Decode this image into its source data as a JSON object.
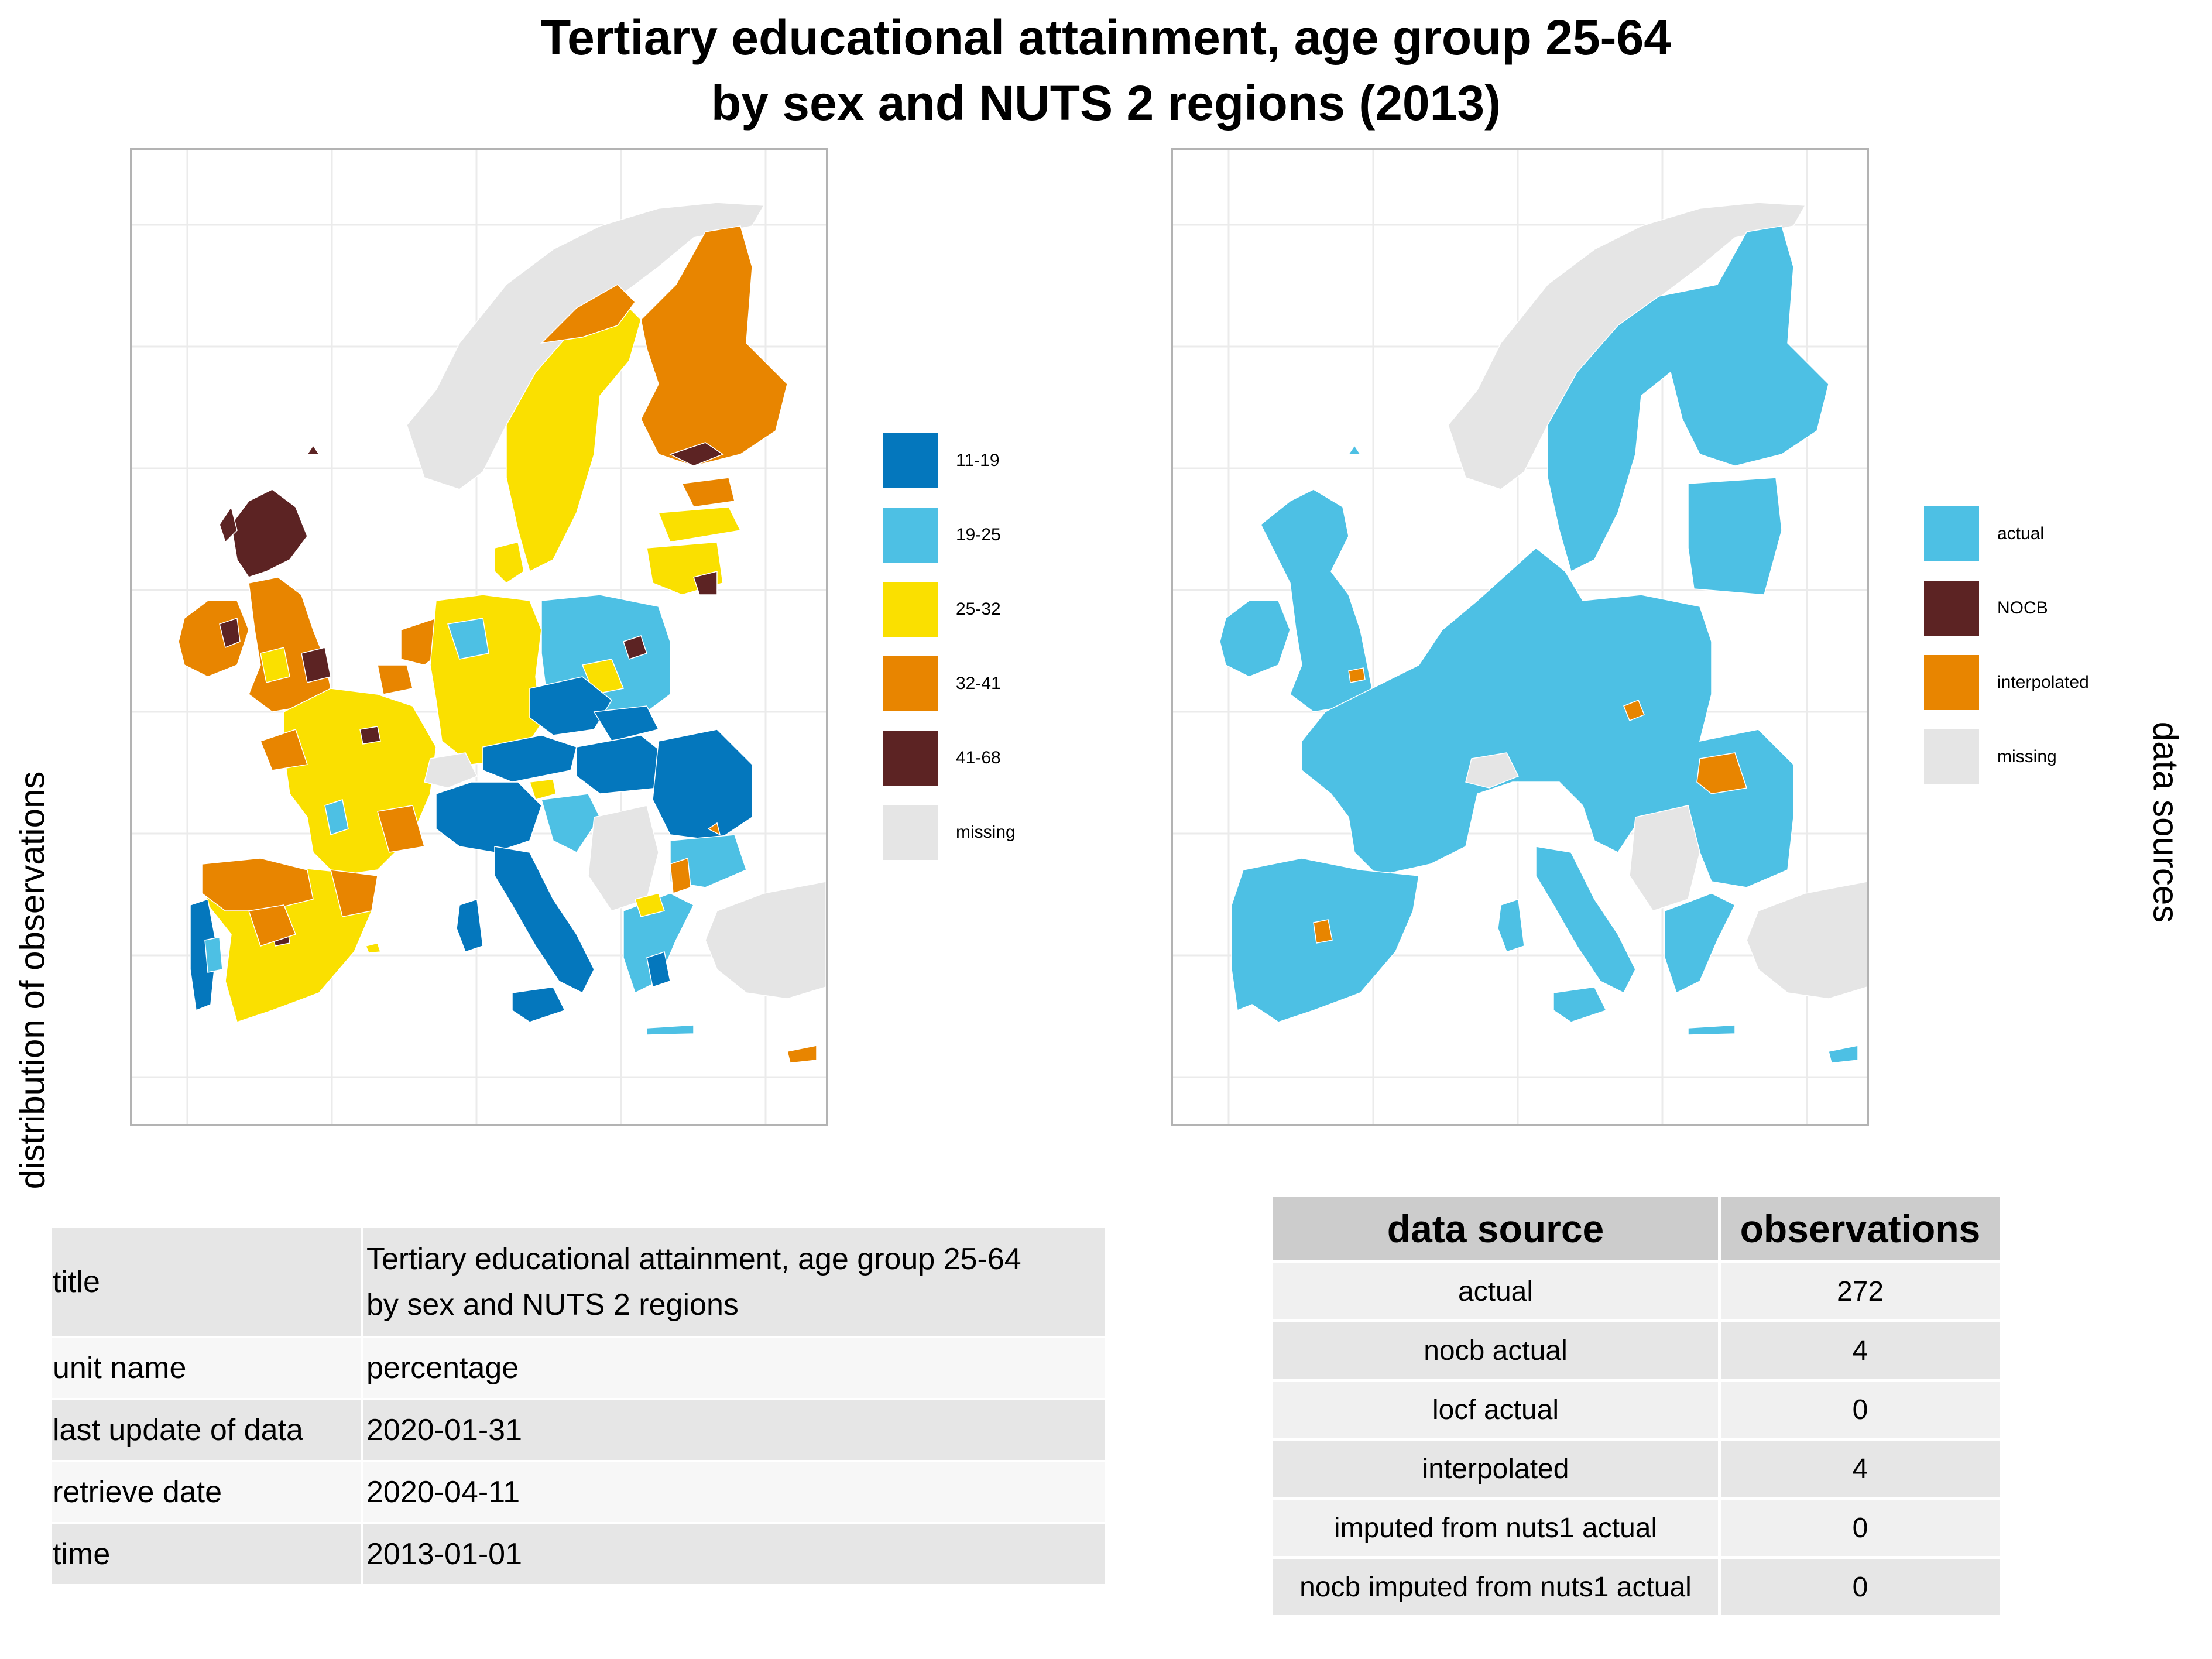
{
  "title": {
    "line1": "Tertiary educational attainment, age group 25-64",
    "line2": "by sex and NUTS 2 regions (2013)"
  },
  "left_map": {
    "ylabel": "distribution of observations",
    "legend": [
      {
        "label": "11-19",
        "color": "#0477BD"
      },
      {
        "label": "19-25",
        "color": "#4DC0E4"
      },
      {
        "label": "25-32",
        "color": "#FAE000"
      },
      {
        "label": "32-41",
        "color": "#E88500"
      },
      {
        "label": "41-68",
        "color": "#5C2323"
      },
      {
        "label": "missing",
        "color": "#E5E5E5"
      }
    ]
  },
  "right_map": {
    "ylabel": "data sources",
    "legend": [
      {
        "label": "actual",
        "color": "#4DC0E4"
      },
      {
        "label": "NOCB",
        "color": "#5C2323"
      },
      {
        "label": "interpolated",
        "color": "#E88500"
      },
      {
        "label": "missing",
        "color": "#E5E5E5"
      }
    ]
  },
  "metadata_table": {
    "rows": [
      {
        "key": "title",
        "value_line1": "Tertiary educational attainment, age group 25-64",
        "value_line2": "by sex and NUTS 2 regions"
      },
      {
        "key": "unit name",
        "value": "percentage"
      },
      {
        "key": "last update of data",
        "value": "2020-01-31"
      },
      {
        "key": "retrieve date",
        "value": "2020-04-11"
      },
      {
        "key": "time",
        "value": "2013-01-01"
      }
    ]
  },
  "source_table": {
    "headers": [
      "data source",
      "observations"
    ],
    "rows": [
      {
        "source": "actual",
        "observations": "272"
      },
      {
        "source": "nocb actual",
        "observations": "4"
      },
      {
        "source": "locf actual",
        "observations": "0"
      },
      {
        "source": "interpolated",
        "observations": "4"
      },
      {
        "source": "imputed from nuts1 actual",
        "observations": "0"
      },
      {
        "source": "nocb imputed from nuts1 actual",
        "observations": "0"
      }
    ]
  }
}
